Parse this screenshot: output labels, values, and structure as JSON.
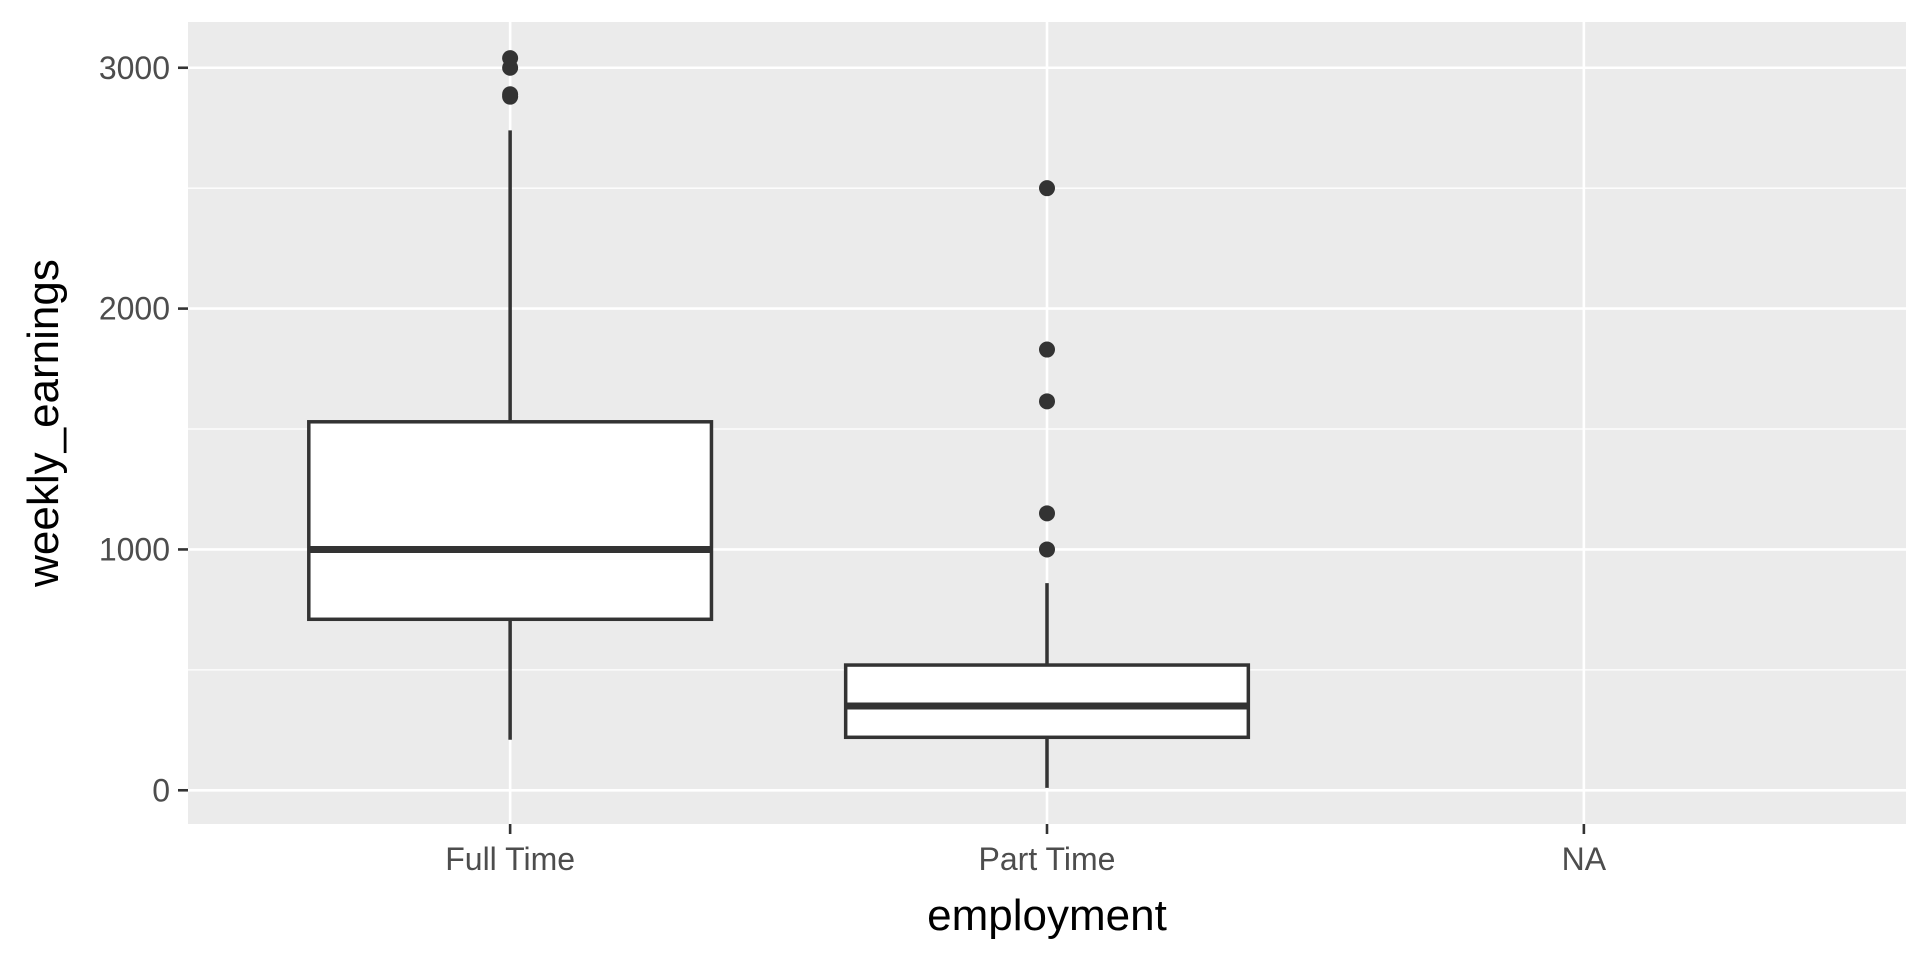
{
  "chart_data": {
    "type": "boxplot",
    "xlabel": "employment",
    "ylabel": "weekly_earnings",
    "categories": [
      "Full Time",
      "Part Time",
      "NA"
    ],
    "y_ticks": [
      0,
      1000,
      2000,
      3000
    ],
    "ylim": [
      -140,
      3190
    ],
    "grid": true,
    "legend": "none",
    "colors": {
      "panel": "#ebebeb",
      "grid": "#ffffff",
      "box_fill": "#ffffff",
      "box_stroke": "#333333",
      "outlier": "#333333",
      "tick_label": "#4d4d4d",
      "axis_title": "#000000"
    },
    "boxes": [
      {
        "category": "Full Time",
        "min": 210,
        "q1": 710,
        "median": 1000,
        "q3": 1530,
        "max": 2740,
        "outliers": [
          2880,
          2890,
          3000,
          3040
        ]
      },
      {
        "category": "Part Time",
        "min": 10,
        "q1": 220,
        "median": 350,
        "q3": 520,
        "max": 860,
        "outliers": [
          1000,
          1150,
          1615,
          1830,
          2500
        ]
      },
      {
        "category": "NA",
        "min": null,
        "q1": null,
        "median": null,
        "q3": null,
        "max": null,
        "outliers": []
      }
    ]
  }
}
